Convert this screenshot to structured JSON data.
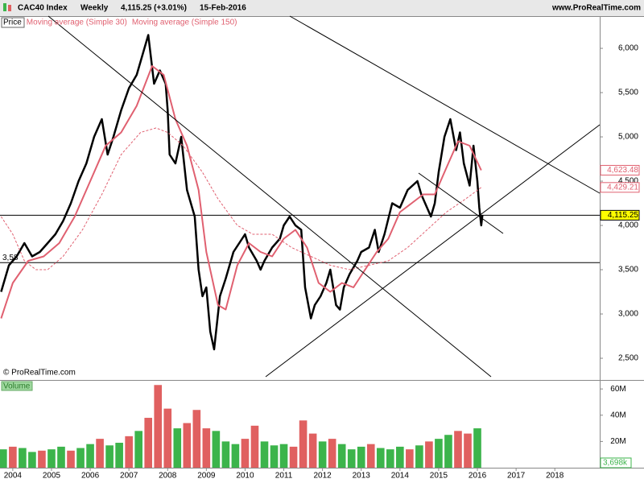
{
  "chart_data": [
    {
      "type": "line",
      "title": "CAC40 Index",
      "interval": "Weekly",
      "quote": "4,115.25 (+3.01%)",
      "date": "15-Feb-2016",
      "source": "www.ProRealTime.com",
      "copyright": "© ProRealTime.com",
      "xlim": [
        2003.67,
        2019.16
      ],
      "ylim": [
        2273,
        6364
      ],
      "yticks": [
        {
          "value": 2500,
          "label": "2,500"
        },
        {
          "value": 3000,
          "label": "3,000"
        },
        {
          "value": 3500,
          "label": "3,500"
        },
        {
          "value": 4000,
          "label": "4,000"
        },
        {
          "value": 4500,
          "label": "4,500"
        },
        {
          "value": 5000,
          "label": "5,000"
        },
        {
          "value": 5500,
          "label": "5,500"
        },
        {
          "value": 6000,
          "label": "6,000"
        }
      ],
      "series": [
        {
          "name": "Price",
          "color": "#000000",
          "width": 2.5,
          "x": [
            2003.7,
            2003.9,
            2004.1,
            2004.3,
            2004.5,
            2004.7,
            2004.9,
            2005.1,
            2005.3,
            2005.5,
            2005.7,
            2005.9,
            2006.1,
            2006.3,
            2006.45,
            2006.6,
            2006.8,
            2007.0,
            2007.2,
            2007.4,
            2007.5,
            2007.65,
            2007.8,
            2007.95,
            2008.0,
            2008.05,
            2008.2,
            2008.35,
            2008.5,
            2008.7,
            2008.8,
            2008.9,
            2009.0,
            2009.1,
            2009.2,
            2009.35,
            2009.5,
            2009.7,
            2009.85,
            2010.0,
            2010.1,
            2010.3,
            2010.4,
            2010.5,
            2010.7,
            2010.9,
            2011.0,
            2011.15,
            2011.3,
            2011.45,
            2011.55,
            2011.7,
            2011.8,
            2011.95,
            2012.1,
            2012.2,
            2012.35,
            2012.45,
            2012.55,
            2012.7,
            2012.9,
            2013.0,
            2013.2,
            2013.35,
            2013.45,
            2013.6,
            2013.8,
            2014.0,
            2014.2,
            2014.45,
            2014.55,
            2014.65,
            2014.8,
            2014.9,
            2015.0,
            2015.15,
            2015.3,
            2015.45,
            2015.55,
            2015.65,
            2015.8,
            2015.9,
            2016.0,
            2016.05,
            2016.1,
            2016.13
          ],
          "values": [
            3250,
            3550,
            3650,
            3800,
            3650,
            3700,
            3800,
            3900,
            4050,
            4250,
            4500,
            4700,
            5000,
            5200,
            4800,
            5000,
            5300,
            5550,
            5700,
            6000,
            6150,
            5600,
            5750,
            5600,
            5300,
            4800,
            4700,
            5000,
            4400,
            4100,
            3500,
            3200,
            3300,
            2800,
            2600,
            3200,
            3400,
            3700,
            3800,
            3900,
            3750,
            3600,
            3500,
            3600,
            3750,
            3850,
            4000,
            4100,
            4000,
            3950,
            3300,
            2950,
            3100,
            3200,
            3350,
            3500,
            3100,
            3050,
            3300,
            3450,
            3600,
            3700,
            3750,
            3950,
            3700,
            3900,
            4250,
            4200,
            4400,
            4500,
            4350,
            4250,
            4100,
            4250,
            4600,
            5000,
            5200,
            4850,
            5050,
            4700,
            4450,
            4900,
            4500,
            4200,
            4000,
            4115.25
          ]
        },
        {
          "name": "Moving average (Simple 30)",
          "color": "#e06070",
          "width": 2,
          "x": [
            2003.7,
            2004.0,
            2004.4,
            2004.8,
            2005.2,
            2005.6,
            2006.0,
            2006.4,
            2006.8,
            2007.2,
            2007.6,
            2007.9,
            2008.2,
            2008.5,
            2008.8,
            2009.0,
            2009.3,
            2009.5,
            2009.8,
            2010.1,
            2010.4,
            2010.7,
            2011.0,
            2011.3,
            2011.6,
            2011.9,
            2012.2,
            2012.5,
            2012.8,
            2013.1,
            2013.4,
            2013.7,
            2014.0,
            2014.3,
            2014.6,
            2014.9,
            2015.2,
            2015.5,
            2015.8,
            2016.1
          ],
          "values": [
            2950,
            3350,
            3600,
            3650,
            3800,
            4100,
            4500,
            4900,
            5050,
            5350,
            5800,
            5700,
            5200,
            4900,
            4400,
            3700,
            3100,
            3050,
            3550,
            3800,
            3700,
            3650,
            3850,
            3950,
            3750,
            3350,
            3250,
            3350,
            3300,
            3500,
            3700,
            3850,
            4150,
            4250,
            4350,
            4350,
            4650,
            4950,
            4900,
            4623.48
          ]
        },
        {
          "name": "Moving average (Simple 150)",
          "color": "#e06070",
          "width": 1,
          "dashed": true,
          "x": [
            2003.7,
            2004.0,
            2004.3,
            2004.6,
            2004.9,
            2005.3,
            2005.8,
            2006.3,
            2006.8,
            2007.3,
            2007.7,
            2008.0,
            2008.4,
            2008.9,
            2009.3,
            2009.8,
            2010.2,
            2010.7,
            2011.2,
            2011.7,
            2012.2,
            2012.7,
            2013.2,
            2013.7,
            2014.2,
            2014.7,
            2015.2,
            2015.7,
            2016.1
          ],
          "values": [
            4100,
            3900,
            3600,
            3500,
            3500,
            3650,
            3950,
            4350,
            4800,
            5050,
            5100,
            5050,
            4900,
            4600,
            4300,
            4000,
            3900,
            3900,
            3750,
            3650,
            3550,
            3500,
            3550,
            3600,
            3750,
            3950,
            4150,
            4300,
            4429.21
          ]
        }
      ],
      "value_labels": [
        {
          "value": 4623.48,
          "label": "4,623.48",
          "color": "#e06070"
        },
        {
          "value": 4429.21,
          "label": "4,429.21",
          "color": "#e06070"
        },
        {
          "value": 4115.25,
          "label": "4,115.25",
          "color": "#000000"
        }
      ],
      "levels": [
        {
          "value": 4115.25
        },
        {
          "value": 3580,
          "label": "3,58"
        }
      ]
    },
    {
      "type": "bar",
      "title": "Volume",
      "xlim": [
        2003.67,
        2019.16
      ],
      "ylim": [
        0,
        65
      ],
      "yticks": [
        {
          "value": 20,
          "label": "20M"
        },
        {
          "value": 40,
          "label": "40M"
        },
        {
          "value": 60,
          "label": "60M"
        }
      ],
      "xticks": [
        2004,
        2005,
        2006,
        2007,
        2008,
        2009,
        2010,
        2011,
        2012,
        2013,
        2014,
        2015,
        2016,
        2017,
        2018
      ],
      "x": [
        2003.75,
        2004.0,
        2004.25,
        2004.5,
        2004.75,
        2005.0,
        2005.25,
        2005.5,
        2005.75,
        2006.0,
        2006.25,
        2006.5,
        2006.75,
        2007.0,
        2007.25,
        2007.5,
        2007.75,
        2008.0,
        2008.25,
        2008.5,
        2008.75,
        2009.0,
        2009.25,
        2009.5,
        2009.75,
        2010.0,
        2010.25,
        2010.5,
        2010.75,
        2011.0,
        2011.25,
        2011.5,
        2011.75,
        2012.0,
        2012.25,
        2012.5,
        2012.75,
        2013.0,
        2013.25,
        2013.5,
        2013.75,
        2014.0,
        2014.25,
        2014.5,
        2014.75,
        2015.0,
        2015.25,
        2015.5,
        2015.75,
        2016.0
      ],
      "values": [
        14,
        16,
        15,
        12,
        13,
        14,
        16,
        13,
        15,
        18,
        22,
        17,
        19,
        24,
        28,
        38,
        63,
        45,
        30,
        34,
        44,
        30,
        28,
        20,
        18,
        22,
        32,
        20,
        17,
        18,
        16,
        36,
        26,
        20,
        22,
        18,
        14,
        16,
        18,
        15,
        14,
        16,
        14,
        17,
        20,
        22,
        25,
        28,
        26,
        30
      ],
      "colors": [
        "#3cb44b",
        "#e06060",
        "#3cb44b",
        "#3cb44b",
        "#e06060",
        "#3cb44b",
        "#3cb44b",
        "#e06060",
        "#3cb44b",
        "#3cb44b",
        "#e06060",
        "#3cb44b",
        "#3cb44b",
        "#e06060",
        "#3cb44b",
        "#e06060",
        "#e06060",
        "#e06060",
        "#3cb44b",
        "#e06060",
        "#e06060",
        "#e06060",
        "#3cb44b",
        "#3cb44b",
        "#3cb44b",
        "#e06060",
        "#e06060",
        "#3cb44b",
        "#3cb44b",
        "#3cb44b",
        "#e06060",
        "#e06060",
        "#e06060",
        "#3cb44b",
        "#e06060",
        "#3cb44b",
        "#3cb44b",
        "#3cb44b",
        "#e06060",
        "#3cb44b",
        "#3cb44b",
        "#3cb44b",
        "#e06060",
        "#3cb44b",
        "#e06060",
        "#3cb44b",
        "#3cb44b",
        "#e06060",
        "#e06060",
        "#3cb44b"
      ],
      "last_value": {
        "value": 3.698,
        "label": "3,698k"
      }
    }
  ]
}
